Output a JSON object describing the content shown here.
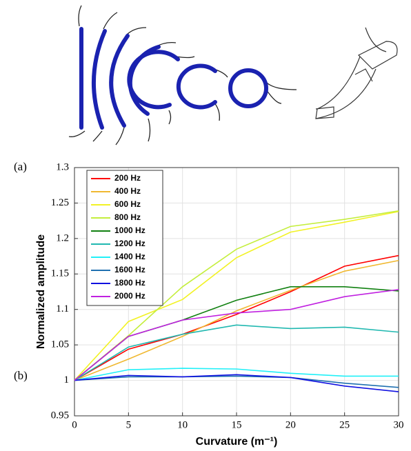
{
  "panel_labels": [
    "(a)",
    "(b)"
  ],
  "chart_data": {
    "type": "line",
    "xlabel": "Curvature (m⁻¹)",
    "ylabel": "Normalized amplitude",
    "x": [
      0,
      5,
      10,
      15,
      20,
      25,
      30
    ],
    "xlim": [
      0,
      30
    ],
    "xticks": [
      0,
      5,
      10,
      15,
      20,
      25,
      30
    ],
    "ylim": [
      0.95,
      1.3
    ],
    "yticks": [
      0.95,
      1,
      1.05,
      1.1,
      1.15,
      1.2,
      1.25,
      1.3
    ],
    "grid": true,
    "legend": "upper-left",
    "series": [
      {
        "name": "200 Hz",
        "color": "#ff0000",
        "values": [
          1,
          1.044,
          1.065,
          1.093,
          1.125,
          1.161,
          1.176
        ]
      },
      {
        "name": "400 Hz",
        "color": "#f0b830",
        "values": [
          1,
          1.03,
          1.062,
          1.098,
          1.127,
          1.154,
          1.169
        ]
      },
      {
        "name": "600 Hz",
        "color": "#f2f224",
        "values": [
          1,
          1.083,
          1.114,
          1.173,
          1.209,
          1.223,
          1.238
        ]
      },
      {
        "name": "800 Hz",
        "color": "#c4ee3c",
        "values": [
          1,
          1.063,
          1.132,
          1.185,
          1.217,
          1.227,
          1.239
        ]
      },
      {
        "name": "1000 Hz",
        "color": "#108010",
        "values": [
          1,
          1.062,
          1.085,
          1.113,
          1.132,
          1.132,
          1.126
        ]
      },
      {
        "name": "1200 Hz",
        "color": "#20b8b0",
        "values": [
          1,
          1.047,
          1.065,
          1.078,
          1.073,
          1.075,
          1.068
        ]
      },
      {
        "name": "1400 Hz",
        "color": "#20f0f8",
        "values": [
          1,
          1.015,
          1.017,
          1.016,
          1.01,
          1.006,
          1.006
        ]
      },
      {
        "name": "1600 Hz",
        "color": "#1f70b0",
        "values": [
          1,
          1.005,
          1.005,
          1.006,
          1.004,
          0.996,
          0.99
        ]
      },
      {
        "name": "1800 Hz",
        "color": "#1010e0",
        "values": [
          1,
          1.007,
          1.005,
          1.008,
          1.004,
          0.992,
          0.984
        ]
      },
      {
        "name": "2000 Hz",
        "color": "#c020e0",
        "values": [
          1,
          1.062,
          1.085,
          1.095,
          1.1,
          1.118,
          1.128
        ]
      }
    ]
  }
}
